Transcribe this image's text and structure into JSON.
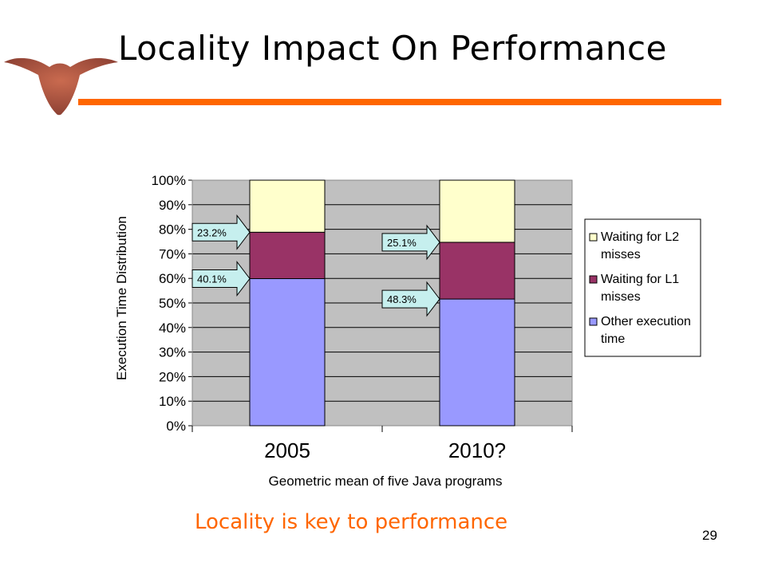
{
  "slide": {
    "title": "Locality Impact On Performance",
    "tagline": "Locality is key to performance",
    "page_number": "29",
    "accent_color": "#ff6600",
    "logo_icon": "longhorn-logo-icon"
  },
  "chart_data": {
    "type": "bar",
    "stacked": true,
    "categories": [
      "2005",
      "2010?"
    ],
    "series": [
      {
        "name": "Other execution time",
        "color": "#9999ff",
        "values": [
          59.9,
          51.6
        ]
      },
      {
        "name": "Waiting for L1 misses",
        "color": "#993366",
        "values": [
          18.9,
          23.1
        ]
      },
      {
        "name": "Waiting for L2 misses",
        "color": "#ffffcc",
        "values": [
          21.2,
          25.3
        ]
      }
    ],
    "annotations": [
      {
        "category": "2005",
        "label": "23.2%"
      },
      {
        "category": "2005",
        "label": "40.1%"
      },
      {
        "category": "2010?",
        "label": "25.1%"
      },
      {
        "category": "2010?",
        "label": "48.3%"
      }
    ],
    "ylabel": "Execution Time Distribution",
    "xlabel": "Geometric mean of five Java programs",
    "ylim": [
      0,
      100
    ],
    "yticks": [
      "0%",
      "10%",
      "20%",
      "30%",
      "40%",
      "50%",
      "60%",
      "70%",
      "80%",
      "90%",
      "100%"
    ],
    "grid": true,
    "plot_background": "#c0c0c0",
    "legend_position": "right"
  }
}
